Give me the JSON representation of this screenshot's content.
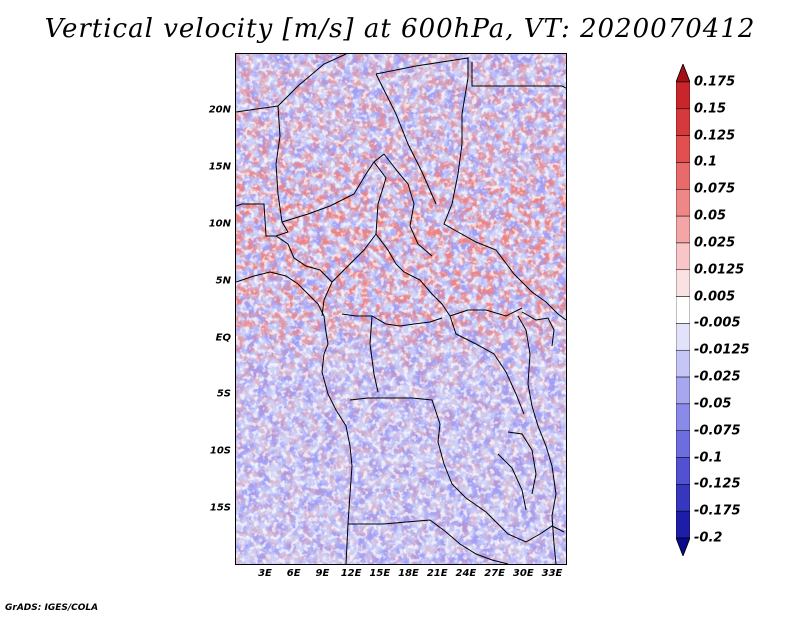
{
  "title": "Vertical velocity [m/s] at 600hPa, VT: 2020070412",
  "footer": "GrADS: IGES/COLA",
  "map": {
    "lat_labels": [
      "20N",
      "15N",
      "10N",
      "5N",
      "EQ",
      "5S",
      "10S",
      "15S"
    ],
    "lon_labels": [
      "3E",
      "6E",
      "9E",
      "12E",
      "15E",
      "18E",
      "21E",
      "24E",
      "27E",
      "30E",
      "33E"
    ]
  },
  "colorbar": {
    "labels": [
      "0.175",
      "0.15",
      "0.125",
      "0.1",
      "0.075",
      "0.05",
      "0.025",
      "0.0125",
      "0.005",
      "-0.005",
      "-0.0125",
      "-0.025",
      "-0.05",
      "-0.075",
      "-0.1",
      "-0.125",
      "-0.175",
      "-0.2"
    ],
    "colors": [
      "#a50f15",
      "#c8262a",
      "#d6393b",
      "#e24f4f",
      "#e96a6a",
      "#ef8787",
      "#f4a5a5",
      "#f8c6c6",
      "#fbe2e2",
      "#ffffff",
      "#e2e2fa",
      "#c6c6f6",
      "#a7a7f0",
      "#8a8ae8",
      "#6d6ddf",
      "#5151d2",
      "#3636bf",
      "#1d1da8",
      "#0a0a8a"
    ]
  }
}
